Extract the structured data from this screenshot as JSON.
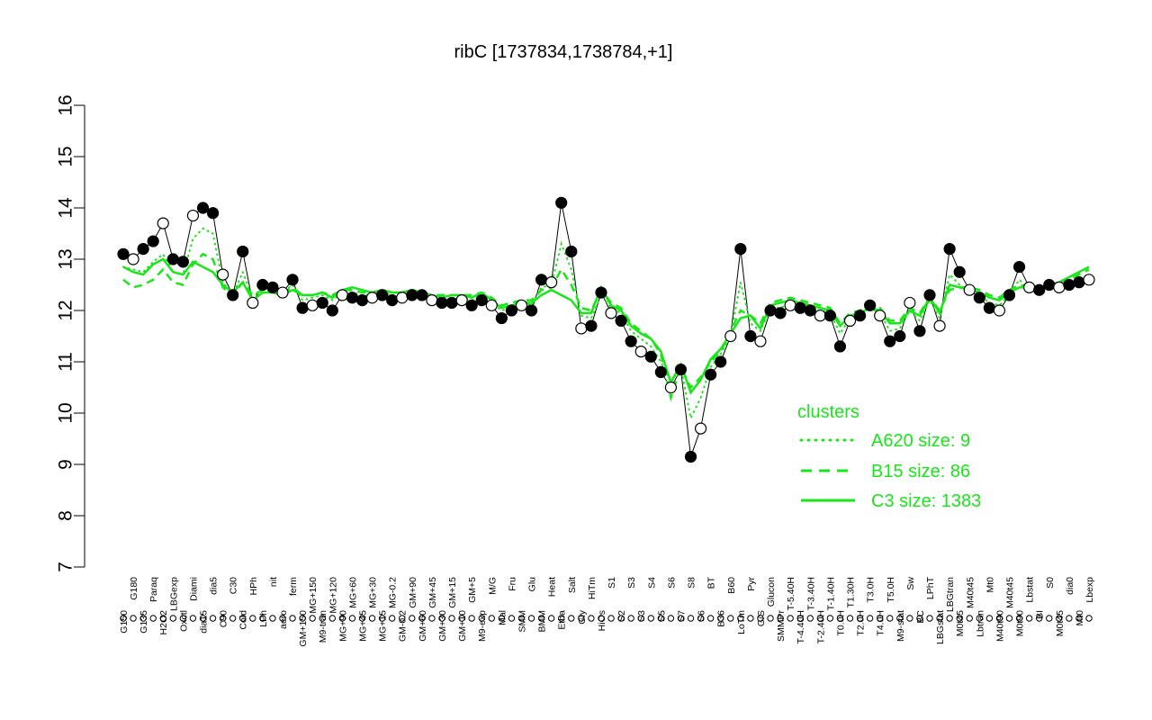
{
  "chart_data": {
    "type": "line",
    "title": "ribC [1737834,1738784,+1]",
    "xlabel": "",
    "ylabel": "",
    "ylim": [
      7,
      16
    ],
    "yticks": [
      "7",
      "8",
      "9",
      "10",
      "11",
      "12",
      "13",
      "14",
      "15",
      "16"
    ],
    "grid": false,
    "legend": {
      "title": "clusters",
      "position": "right",
      "entries": [
        {
          "label": "A620 size: 9",
          "style": "dotted"
        },
        {
          "label": "B15 size: 86",
          "style": "dashed"
        },
        {
          "label": "C3 size: 1383",
          "style": "solid"
        }
      ]
    },
    "x_tick_labels": [
      "G150",
      "G180",
      "G135",
      "Paraq",
      "H2O2",
      "LBGexp",
      "Oxctl",
      "Diami",
      "dia15",
      "dia5",
      "C90",
      "C30",
      "Cold",
      "HPh",
      "LPh",
      "nit",
      "aero",
      "ferm",
      "GM+150",
      "MG+150",
      "M9-tran",
      "MG+120",
      "MG+90",
      "MG+60",
      "MG+45",
      "MG+30",
      "MG+15",
      "MG-0.2",
      "GM-0.2",
      "GM+90",
      "GM+60",
      "GM+45",
      "GM+30",
      "GM+15",
      "GM+10",
      "GM+5",
      "M9-exp",
      "M/G",
      "Mal",
      "Fru",
      "SMM",
      "Glu",
      "BMM",
      "Heat",
      "Etha",
      "Salt",
      "Gly",
      "HiTm",
      "HiOs",
      "S1",
      "S2",
      "S3",
      "S3",
      "S4",
      "S5",
      "S6",
      "S7",
      "S8",
      "S6",
      "BT",
      "B36",
      "B60",
      "LoTm",
      "Pyr",
      "G/S",
      "Glucon",
      "SMMPr",
      "T-5.40H",
      "T-4.40H",
      "T-3.40H",
      "T-2.40H",
      "T-1.40H",
      "T0.0H",
      "T1.30H",
      "T2.0H",
      "T3.0H",
      "T4.0H",
      "T5.0H",
      "M9-stat",
      "Sw",
      "BC",
      "LPhT",
      "LBGstat",
      "LBGtran",
      "M0t45",
      "M40t45",
      "Lbtran",
      "Mt0",
      "M40t90",
      "M40t45",
      "M0t90",
      "Lbstat",
      "BI",
      "S0",
      "M0t45",
      "dia0",
      "Mt0",
      "Lbexp"
    ],
    "series": [
      {
        "marker": "filled-circle",
        "values": [
          13.1,
          13.0,
          13.2,
          13.35,
          13.7,
          13.0,
          12.95,
          13.85,
          14.0,
          13.9,
          12.7,
          12.3,
          13.15,
          12.15,
          12.5,
          12.45,
          12.35,
          12.6,
          12.05,
          12.1,
          12.15,
          12.0,
          12.3,
          12.25,
          12.2,
          12.25,
          12.3,
          12.2,
          12.25,
          12.3,
          12.3,
          12.2,
          12.15,
          12.15,
          12.2,
          12.1,
          12.2,
          12.1,
          11.85,
          12.0,
          12.1,
          12.0,
          12.6,
          12.55,
          14.1,
          13.15,
          11.65,
          11.7,
          12.35,
          11.95,
          11.8,
          11.4,
          11.2,
          11.1,
          10.8,
          10.5,
          10.85,
          9.15,
          9.7,
          10.75,
          11.0,
          11.5,
          13.2,
          11.5,
          11.4,
          12.0,
          11.95,
          12.1,
          12.05,
          12.0,
          11.9,
          11.9,
          11.3,
          11.8,
          11.9,
          12.1,
          11.9,
          11.4,
          11.5,
          12.15,
          11.6,
          12.3,
          11.7,
          13.2,
          12.75,
          12.4,
          12.25,
          12.05,
          12.0,
          12.3,
          12.85,
          12.45,
          12.4,
          12.5,
          12.45,
          12.5,
          12.55,
          12.6
        ]
      },
      {
        "name": "A620",
        "style": "dotted",
        "values": [
          12.85,
          12.8,
          12.75,
          12.95,
          13.1,
          12.75,
          12.7,
          13.4,
          13.6,
          13.5,
          12.55,
          12.3,
          12.75,
          12.25,
          12.45,
          12.4,
          12.35,
          12.5,
          12.2,
          12.25,
          12.3,
          12.2,
          12.35,
          12.35,
          12.3,
          12.3,
          12.35,
          12.3,
          12.3,
          12.35,
          12.3,
          12.25,
          12.2,
          12.2,
          12.25,
          12.2,
          12.3,
          12.15,
          12.0,
          12.05,
          12.15,
          12.1,
          12.45,
          12.5,
          13.3,
          12.8,
          11.9,
          11.85,
          12.3,
          12.05,
          11.95,
          11.6,
          11.45,
          11.3,
          11.0,
          10.6,
          10.9,
          9.9,
          10.3,
          10.9,
          11.15,
          11.5,
          12.55,
          11.75,
          11.6,
          12.05,
          12.05,
          12.15,
          12.1,
          12.05,
          12.0,
          11.95,
          11.55,
          11.85,
          11.95,
          12.05,
          11.95,
          11.6,
          11.65,
          12.0,
          11.8,
          12.2,
          11.85,
          12.7,
          12.5,
          12.35,
          12.3,
          12.15,
          12.1,
          12.3,
          12.6,
          12.4,
          12.4,
          12.45,
          12.45,
          12.5,
          12.55,
          12.6
        ]
      },
      {
        "name": "B15",
        "style": "dashed",
        "values": [
          12.6,
          12.45,
          12.5,
          12.6,
          12.8,
          12.55,
          12.5,
          12.9,
          13.1,
          13.0,
          12.45,
          12.3,
          12.55,
          12.3,
          12.4,
          12.4,
          12.35,
          12.45,
          12.3,
          12.3,
          12.35,
          12.3,
          12.4,
          12.4,
          12.35,
          12.35,
          12.4,
          12.35,
          12.35,
          12.4,
          12.35,
          12.3,
          12.3,
          12.3,
          12.3,
          12.3,
          12.35,
          12.25,
          12.1,
          12.15,
          12.2,
          12.2,
          12.4,
          12.45,
          12.8,
          12.5,
          12.05,
          12.0,
          12.4,
          12.15,
          12.05,
          11.75,
          11.6,
          11.45,
          11.15,
          10.3,
          10.9,
          10.5,
          10.7,
          11.0,
          11.2,
          11.6,
          12.0,
          11.9,
          11.75,
          12.15,
          12.2,
          12.25,
          12.2,
          12.15,
          12.1,
          12.05,
          11.75,
          11.95,
          12.0,
          12.1,
          12.05,
          11.8,
          11.8,
          12.05,
          11.95,
          12.25,
          12.0,
          12.4,
          12.45,
          12.45,
          12.4,
          12.3,
          12.25,
          12.4,
          12.5,
          12.45,
          12.45,
          12.5,
          12.55,
          12.6,
          12.7,
          12.8
        ]
      },
      {
        "name": "C3",
        "style": "solid",
        "values": [
          12.85,
          12.75,
          12.7,
          12.9,
          13.0,
          12.75,
          12.7,
          12.95,
          12.85,
          12.75,
          12.5,
          12.35,
          12.55,
          12.2,
          12.35,
          12.35,
          12.3,
          12.4,
          12.3,
          12.3,
          12.35,
          12.25,
          12.4,
          12.45,
          12.4,
          12.35,
          12.4,
          12.35,
          12.35,
          12.4,
          12.35,
          12.3,
          12.25,
          12.3,
          12.3,
          12.25,
          12.35,
          12.2,
          12.05,
          12.1,
          12.15,
          12.15,
          12.3,
          12.4,
          12.3,
          12.2,
          11.95,
          11.95,
          12.45,
          12.1,
          12.0,
          11.7,
          11.55,
          11.45,
          11.2,
          10.6,
          10.95,
          10.4,
          10.65,
          11.05,
          11.25,
          11.55,
          11.85,
          11.9,
          11.65,
          12.1,
          12.15,
          12.2,
          12.15,
          12.1,
          12.05,
          12.0,
          11.7,
          11.9,
          11.95,
          12.05,
          12.0,
          11.75,
          11.75,
          12.0,
          11.9,
          12.25,
          11.95,
          12.5,
          12.45,
          12.4,
          12.35,
          12.25,
          12.2,
          12.35,
          12.45,
          12.45,
          12.45,
          12.5,
          12.55,
          12.65,
          12.75,
          12.85
        ]
      }
    ]
  }
}
